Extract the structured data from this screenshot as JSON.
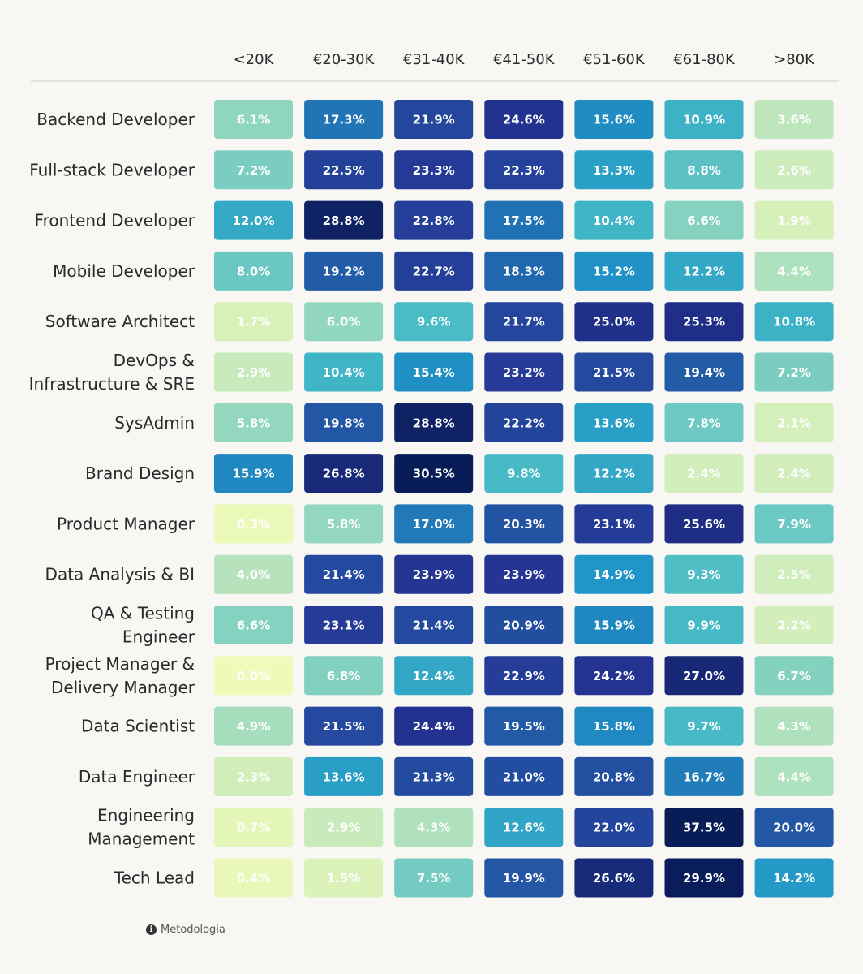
{
  "chart_data": {
    "type": "heatmap",
    "columns": [
      "<20K",
      "€20-30K",
      "€31-40K",
      "€41-50K",
      "€51-60K",
      "€61-80K",
      ">80K"
    ],
    "rows": [
      {
        "label": [
          "Backend Developer"
        ],
        "values": [
          "6.1%",
          "17.3%",
          "21.9%",
          "24.6%",
          "15.6%",
          "10.9%",
          "3.6%"
        ]
      },
      {
        "label": [
          "Full-stack Developer"
        ],
        "values": [
          "7.2%",
          "22.5%",
          "23.3%",
          "22.3%",
          "13.3%",
          "8.8%",
          "2.6%"
        ]
      },
      {
        "label": [
          "Frontend Developer"
        ],
        "values": [
          "12.0%",
          "28.8%",
          "22.8%",
          "17.5%",
          "10.4%",
          "6.6%",
          "1.9%"
        ]
      },
      {
        "label": [
          "Mobile Developer"
        ],
        "values": [
          "8.0%",
          "19.2%",
          "22.7%",
          "18.3%",
          "15.2%",
          "12.2%",
          "4.4%"
        ]
      },
      {
        "label": [
          "Software Architect"
        ],
        "values": [
          "1.7%",
          "6.0%",
          "9.6%",
          "21.7%",
          "25.0%",
          "25.3%",
          "10.8%"
        ]
      },
      {
        "label": [
          "DevOps &",
          "Infrastructure & SRE"
        ],
        "values": [
          "2.9%",
          "10.4%",
          "15.4%",
          "23.2%",
          "21.5%",
          "19.4%",
          "7.2%"
        ]
      },
      {
        "label": [
          "SysAdmin"
        ],
        "values": [
          "5.8%",
          "19.8%",
          "28.8%",
          "22.2%",
          "13.6%",
          "7.8%",
          "2.1%"
        ]
      },
      {
        "label": [
          "Brand Design"
        ],
        "values": [
          "15.9%",
          "26.8%",
          "30.5%",
          "9.8%",
          "12.2%",
          "2.4%",
          "2.4%"
        ]
      },
      {
        "label": [
          "Product Manager"
        ],
        "values": [
          "0.3%",
          "5.8%",
          "17.0%",
          "20.3%",
          "23.1%",
          "25.6%",
          "7.9%"
        ]
      },
      {
        "label": [
          "Data Analysis & BI"
        ],
        "values": [
          "4.0%",
          "21.4%",
          "23.9%",
          "23.9%",
          "14.9%",
          "9.3%",
          "2.5%"
        ]
      },
      {
        "label": [
          "QA & Testing",
          "Engineer"
        ],
        "values": [
          "6.6%",
          "23.1%",
          "21.4%",
          "20.9%",
          "15.9%",
          "9.9%",
          "2.2%"
        ]
      },
      {
        "label": [
          "Project Manager &",
          "Delivery Manager"
        ],
        "values": [
          "0.0%",
          "6.8%",
          "12.4%",
          "22.9%",
          "24.2%",
          "27.0%",
          "6.7%"
        ]
      },
      {
        "label": [
          "Data Scientist"
        ],
        "values": [
          "4.9%",
          "21.5%",
          "24.4%",
          "19.5%",
          "15.8%",
          "9.7%",
          "4.3%"
        ]
      },
      {
        "label": [
          "Data Engineer"
        ],
        "values": [
          "2.3%",
          "13.6%",
          "21.3%",
          "21.0%",
          "20.8%",
          "16.7%",
          "4.4%"
        ]
      },
      {
        "label": [
          "Engineering",
          "Management"
        ],
        "values": [
          "0.7%",
          "2.9%",
          "4.3%",
          "12.6%",
          "22.0%",
          "37.5%",
          "20.0%"
        ]
      },
      {
        "label": [
          "Tech Lead"
        ],
        "values": [
          "0.4%",
          "1.5%",
          "7.5%",
          "19.9%",
          "26.6%",
          "29.9%",
          "14.2%"
        ]
      }
    ],
    "color_scale": {
      "stops": [
        {
          "value": 0,
          "color": "#eefab8"
        },
        {
          "value": 3,
          "color": "#c8eabb"
        },
        {
          "value": 7,
          "color": "#7ecfc0"
        },
        {
          "value": 10,
          "color": "#43b8c6"
        },
        {
          "value": 15,
          "color": "#1f94c7"
        },
        {
          "value": 19,
          "color": "#225ea8"
        },
        {
          "value": 24,
          "color": "#253494"
        },
        {
          "value": 30,
          "color": "#081d58"
        }
      ],
      "text_light": "#ffffff",
      "text_dark": "#ffffff"
    }
  },
  "footer": {
    "info_icon": "info-icon",
    "methodology_label": "Metodologia"
  }
}
